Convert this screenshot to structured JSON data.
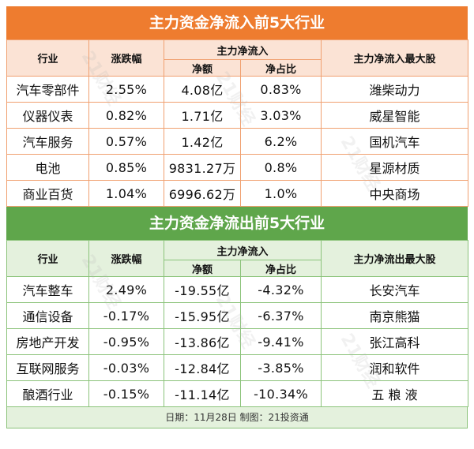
{
  "inflow": {
    "title": "主力资金净流入前5大行业",
    "headers": {
      "industry": "行业",
      "change": "涨跌幅",
      "net_flow_group": "主力净流入",
      "net_amount": "净额",
      "net_ratio": "净占比",
      "top_stock": "主力净流入最大股"
    },
    "rows": [
      {
        "industry": "汽车零部件",
        "change": "2.55%",
        "amount": "4.08亿",
        "ratio": "0.83%",
        "stock": "潍柴动力"
      },
      {
        "industry": "仪器仪表",
        "change": "0.82%",
        "amount": "1.71亿",
        "ratio": "3.03%",
        "stock": "威星智能"
      },
      {
        "industry": "汽车服务",
        "change": "0.57%",
        "amount": "1.42亿",
        "ratio": "6.2%",
        "stock": "国机汽车"
      },
      {
        "industry": "电池",
        "change": "0.85%",
        "amount": "9831.27万",
        "ratio": "0.8%",
        "stock": "星源材质"
      },
      {
        "industry": "商业百货",
        "change": "1.04%",
        "amount": "6996.62万",
        "ratio": "1.0%",
        "stock": "中央商场"
      }
    ]
  },
  "outflow": {
    "title": "主力资金净流出前5大行业",
    "headers": {
      "industry": "行业",
      "change": "涨跌幅",
      "net_flow_group": "主力净流入",
      "net_amount": "净额",
      "net_ratio": "净占比",
      "top_stock": "主力净流出最大股"
    },
    "rows": [
      {
        "industry": "汽车整车",
        "change": "2.49%",
        "amount": "-19.55亿",
        "ratio": "-4.32%",
        "stock": "长安汽车"
      },
      {
        "industry": "通信设备",
        "change": "-0.17%",
        "amount": "-15.95亿",
        "ratio": "-6.37%",
        "stock": "南京熊猫"
      },
      {
        "industry": "房地产开发",
        "change": "-0.95%",
        "amount": "-13.86亿",
        "ratio": "-9.41%",
        "stock": "张江高科"
      },
      {
        "industry": "互联网服务",
        "change": "-0.03%",
        "amount": "-12.84亿",
        "ratio": "-3.85%",
        "stock": "润和软件"
      },
      {
        "industry": "酿酒行业",
        "change": "-0.15%",
        "amount": "-11.14亿",
        "ratio": "-10.34%",
        "stock": "五 粮 液"
      }
    ]
  },
  "footer": "日期：11月28日 制图：21投资通",
  "watermark": "21财经",
  "colors": {
    "inflow_accent": "#ee7c2f",
    "outflow_accent": "#5fa64b"
  }
}
